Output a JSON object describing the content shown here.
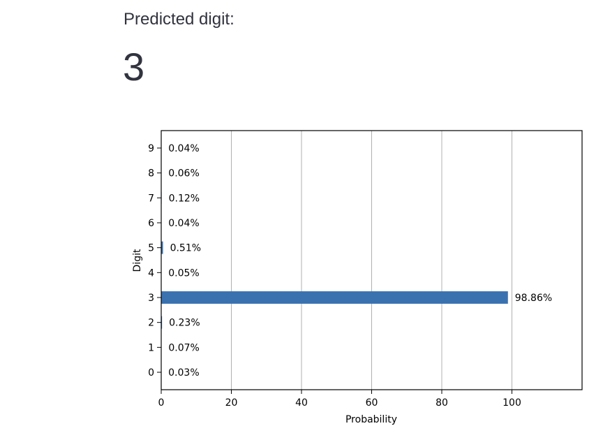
{
  "header": {
    "label": "Predicted digit:",
    "value": "3"
  },
  "chart_data": {
    "type": "bar",
    "orientation": "horizontal",
    "categories": [
      "0",
      "1",
      "2",
      "3",
      "4",
      "5",
      "6",
      "7",
      "8",
      "9"
    ],
    "values": [
      0.03,
      0.07,
      0.23,
      98.86,
      0.05,
      0.51,
      0.04,
      0.12,
      0.06,
      0.04
    ],
    "value_labels": [
      "0.03%",
      "0.07%",
      "0.23%",
      "98.86%",
      "0.05%",
      "0.51%",
      "0.04%",
      "0.12%",
      "0.06%",
      "0.04%"
    ],
    "xlabel": "Probability",
    "ylabel": "Digit",
    "xlim": [
      0,
      120
    ],
    "xticks": [
      0,
      20,
      40,
      60,
      80,
      100
    ],
    "grid": "vertical",
    "bar_color": "#3a72b0",
    "grid_color": "#b0b0b0"
  }
}
